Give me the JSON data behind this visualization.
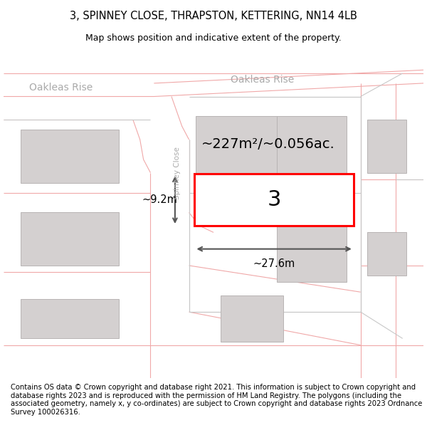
{
  "title_line1": "3, SPINNEY CLOSE, THRAPSTON, KETTERING, NN14 4LB",
  "title_line2": "Map shows position and indicative extent of the property.",
  "footer_text": "Contains OS data © Crown copyright and database right 2021. This information is subject to Crown copyright and database rights 2023 and is reproduced with the permission of HM Land Registry. The polygons (including the associated geometry, namely x, y co-ordinates) are subject to Crown copyright and database rights 2023 Ordnance Survey 100026316.",
  "background_color": "#ffffff",
  "map_background": "#f7f2f2",
  "highlight_color": "#ff0000",
  "highlight_fill": "#ffffff",
  "area_label": "~227m²/~0.056ac.",
  "property_number": "3",
  "width_label": "~27.6m",
  "height_label": "~9.2m",
  "title_fontsize": 10.5,
  "subtitle_fontsize": 9,
  "footer_fontsize": 7.2,
  "road_pink": "#f0a8a8",
  "road_gray": "#c8c8c8",
  "building_fill": "#d4d0d0",
  "building_edge": "#b8b4b4",
  "label_gray": "#aaaaaa",
  "dim_color": "#555555"
}
